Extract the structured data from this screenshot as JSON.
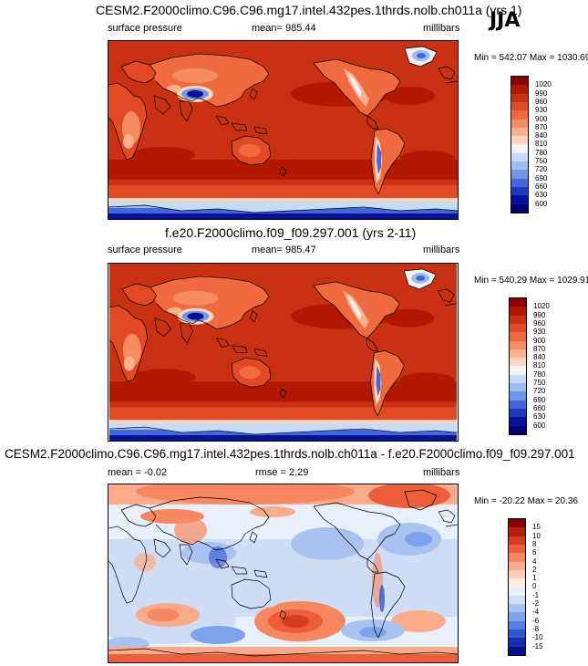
{
  "season": "JJA",
  "panels": [
    {
      "title": "CESM2.F2000climo.C96.C96.mg17.intel.432pes.1thrds.nolb.ch011a (yrs 1)",
      "left_label": "surface pressure",
      "center_label": "mean= 985.44",
      "right_label": "millibars",
      "minmax": "Min = 542.07 Max = 1030.69",
      "field": "absolute",
      "colorbar": {
        "labels": [
          "1020",
          "990",
          "960",
          "930",
          "900",
          "870",
          "840",
          "810",
          "780",
          "750",
          "720",
          "690",
          "660",
          "630",
          "600"
        ],
        "colors": [
          "#8b0000",
          "#b01800",
          "#c83212",
          "#e04a24",
          "#ef6a3e",
          "#f78c60",
          "#fcb08c",
          "#fed6c0",
          "#f2f2f2",
          "#c6dbf5",
          "#9bbdf0",
          "#6f96e8",
          "#4267dc",
          "#2038c0",
          "#06109a",
          "#000073"
        ]
      }
    },
    {
      "title": "f.e20.F2000climo.f09_f09.297.001 (yrs 2-11)",
      "left_label": "surface pressure",
      "center_label": "mean= 985.47",
      "right_label": "millibars",
      "minmax": "Min = 540.29 Max = 1029.91",
      "field": "absolute",
      "colorbar": {
        "labels": [
          "1020",
          "990",
          "960",
          "930",
          "900",
          "870",
          "840",
          "810",
          "780",
          "750",
          "720",
          "690",
          "660",
          "630",
          "600"
        ],
        "colors": [
          "#8b0000",
          "#b01800",
          "#c83212",
          "#e04a24",
          "#ef6a3e",
          "#f78c60",
          "#fcb08c",
          "#fed6c0",
          "#f2f2f2",
          "#c6dbf5",
          "#9bbdf0",
          "#6f96e8",
          "#4267dc",
          "#2038c0",
          "#06109a",
          "#000073"
        ]
      }
    },
    {
      "title": "CESM2.F2000climo.C96.C96.mg17.intel.432pes.1thrds.nolb.ch011a - f.e20.F2000climo.f09_f09.297.001",
      "left_label": "mean =  -0.02",
      "center_label": "rmse =   2.29",
      "right_label": "millibars",
      "minmax": "Min = -20.22 Max =  20.36",
      "field": "difference",
      "colorbar": {
        "labels": [
          "15",
          "10",
          "8",
          "6",
          "4",
          "2",
          "1",
          "0",
          "-1",
          "-2",
          "-4",
          "-6",
          "-8",
          "-10",
          "-15"
        ],
        "colors": [
          "#8b0000",
          "#b5200c",
          "#d43d1e",
          "#ec5e3a",
          "#f7875f",
          "#fbab8a",
          "#fdcfb6",
          "#fdeee2",
          "#e8f0fb",
          "#cfdcf6",
          "#a9c3f1",
          "#7ea3ea",
          "#577ee0",
          "#3257cf",
          "#1430b0",
          "#000f8c"
        ]
      }
    }
  ]
}
